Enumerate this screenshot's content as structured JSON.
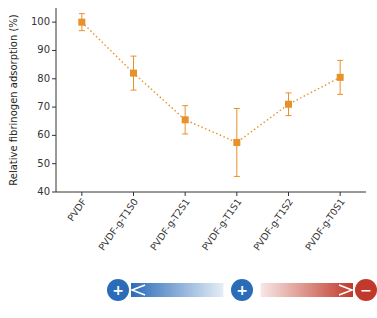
{
  "chart_data": {
    "type": "line",
    "categories": [
      "PVDF",
      "PVDF-g-T1S0",
      "PVDF-g-T2S1",
      "PVDF-g-T1S1",
      "PVDF-g-T1S2",
      "PVDF-g-T0S1"
    ],
    "values": [
      100,
      82,
      65.5,
      57.5,
      71,
      80.5
    ],
    "errors": [
      3,
      6,
      5,
      12,
      4,
      6
    ],
    "color": "#E8902A",
    "marker": "square",
    "line_style": "dotted",
    "ylabel": "Relative fibrinogen adsorption (%)",
    "ylim": [
      40,
      105
    ],
    "yticks": [
      40,
      50,
      60,
      70,
      80,
      90,
      100
    ],
    "grid": false,
    "annotations": [
      {
        "text": "+",
        "color": "#2B6CB8"
      },
      {
        "text": "+",
        "color": "#2B6CB8"
      },
      {
        "text": "−",
        "color": "#C0392B"
      }
    ]
  }
}
